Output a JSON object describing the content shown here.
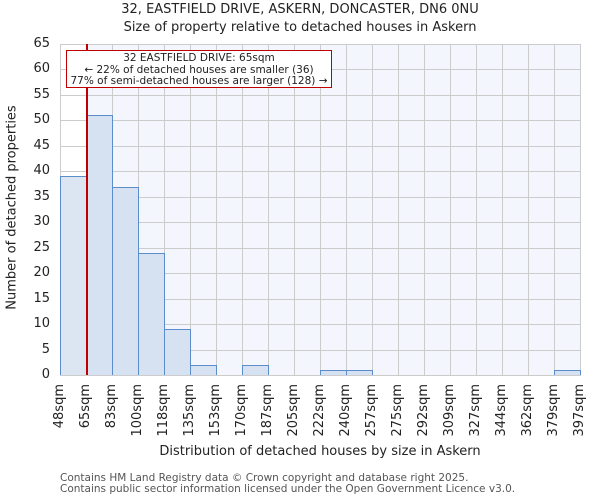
{
  "header": {
    "title": "32, EASTFIELD DRIVE, ASKERN, DONCASTER, DN6 0NU",
    "subtitle": "Size of property relative to detached houses in Askern"
  },
  "annotation": {
    "line1": "32 EASTFIELD DRIVE: 65sqm",
    "line2": "← 22% of detached houses are smaller (36)",
    "line3": "77% of semi-detached houses are larger (128) →"
  },
  "axes": {
    "ylabel": "Number of detached properties",
    "xlabel": "Distribution of detached houses by size in Askern",
    "yticks": [
      "0",
      "5",
      "10",
      "15",
      "20",
      "25",
      "30",
      "35",
      "40",
      "45",
      "50",
      "55",
      "60",
      "65"
    ]
  },
  "footer": {
    "line1": "Contains HM Land Registry data © Crown copyright and database right 2025.",
    "line2": "Contains public sector information licensed under the Open Government Licence v3.0."
  },
  "colors": {
    "bar_fill": "#d6e1f2",
    "bar_edge": "#5b8ccc",
    "marker": "#c00000",
    "plot_bg": "#f3f6fd",
    "grid": "#cccccc"
  },
  "chart_data": {
    "type": "bar",
    "title": "32, EASTFIELD DRIVE, ASKERN, DONCASTER, DN6 0NU",
    "subtitle": "Size of property relative to detached houses in Askern",
    "xlabel": "Distribution of detached houses by size in Askern",
    "ylabel": "Number of detached properties",
    "categories": [
      "48sqm",
      "65sqm",
      "83sqm",
      "100sqm",
      "118sqm",
      "135sqm",
      "153sqm",
      "170sqm",
      "187sqm",
      "205sqm",
      "222sqm",
      "240sqm",
      "257sqm",
      "275sqm",
      "292sqm",
      "309sqm",
      "327sqm",
      "344sqm",
      "362sqm",
      "379sqm",
      "397sqm"
    ],
    "bin_edges": [
      48,
      65,
      83,
      100,
      118,
      135,
      153,
      170,
      187,
      205,
      222,
      240,
      257,
      275,
      292,
      309,
      327,
      344,
      362,
      379,
      397
    ],
    "values": [
      39,
      51,
      37,
      24,
      9,
      2,
      0,
      2,
      0,
      0,
      1,
      1,
      0,
      0,
      0,
      0,
      0,
      0,
      0,
      1
    ],
    "ylim": [
      0,
      65
    ],
    "yticks": [
      0,
      5,
      10,
      15,
      20,
      25,
      30,
      35,
      40,
      45,
      50,
      55,
      60,
      65
    ],
    "grid": true,
    "marker": {
      "x": 65,
      "label": "32 EASTFIELD DRIVE: 65sqm"
    },
    "annotations": [
      "32 EASTFIELD DRIVE: 65sqm",
      "← 22% of detached houses are smaller (36)",
      "77% of semi-detached houses are larger (128) →"
    ]
  }
}
